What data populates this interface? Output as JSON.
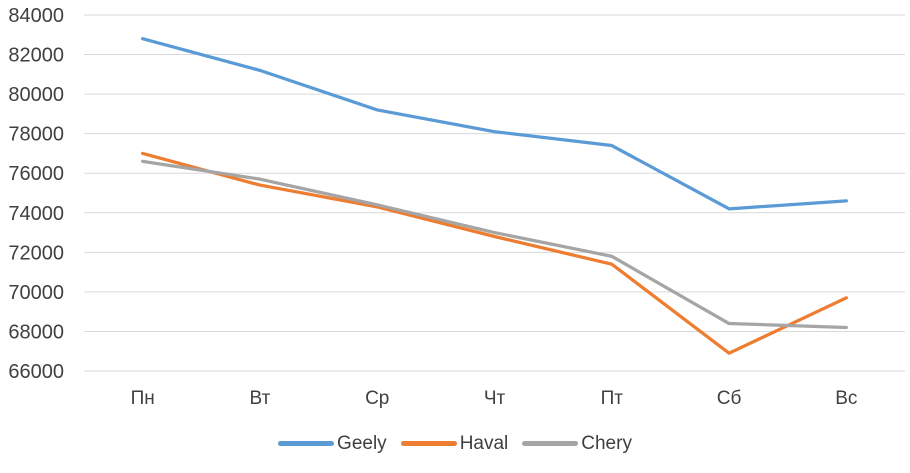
{
  "chart_data": {
    "type": "line",
    "categories": [
      "Пн",
      "Вт",
      "Ср",
      "Чт",
      "Пт",
      "Сб",
      "Вс"
    ],
    "series": [
      {
        "name": "Geely",
        "color": "#5B9BD5",
        "values": [
          82800,
          81200,
          79200,
          78100,
          77400,
          74200,
          74600
        ]
      },
      {
        "name": "Haval",
        "color": "#ED7D31",
        "values": [
          77000,
          75400,
          74300,
          72800,
          71400,
          66900,
          69700
        ]
      },
      {
        "name": "Chery",
        "color": "#A5A5A5",
        "values": [
          76600,
          75700,
          74400,
          73000,
          71800,
          68400,
          68200
        ]
      }
    ],
    "title": "",
    "xlabel": "",
    "ylabel": "",
    "ylim": [
      66000,
      84000
    ],
    "ytick_step": 2000,
    "ytick_labels": [
      "66000",
      "68000",
      "70000",
      "72000",
      "74000",
      "76000",
      "78000",
      "80000",
      "82000",
      "84000"
    ],
    "grid": true,
    "legend_position": "bottom",
    "colors": {
      "gridline": "#D9D9D9",
      "axis_text": "#404040",
      "background": "#FFFFFF"
    }
  }
}
